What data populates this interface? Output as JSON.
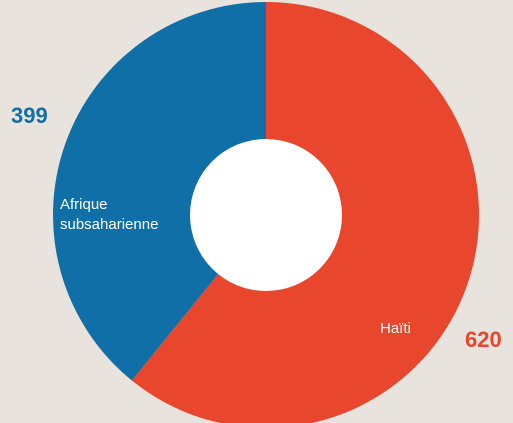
{
  "chart_data": {
    "type": "pie",
    "donut": true,
    "categories": [
      "Haïti",
      "Afrique subsaharienne"
    ],
    "values": [
      620,
      399
    ],
    "value_labels": [
      "620",
      "399"
    ],
    "slice_labels": [
      [
        "Haïti"
      ],
      [
        "Afrique",
        "subsaharienne"
      ]
    ],
    "colors": [
      "#e8462d",
      "#0f6fa6"
    ],
    "start_angle": "12 o'clock",
    "direction": "clockwise",
    "legend": "none"
  },
  "colors": {
    "background": "#e8e3dc",
    "hole": "#ffffff"
  }
}
